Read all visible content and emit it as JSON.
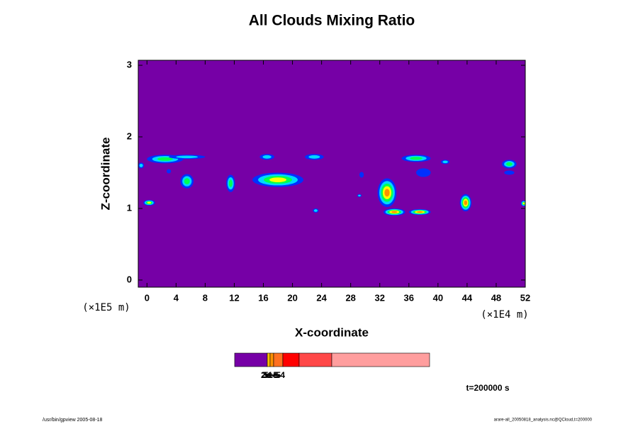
{
  "chart_data": {
    "type": "contour",
    "title": "All Clouds Mixing Ratio",
    "x_label": "X-coordinate",
    "y_label": "Z-coordinate",
    "x_unit": "(×1E4 m)",
    "y_unit": "(×1E5 m)",
    "xlim": [
      -1.2,
      52
    ],
    "xticks": [
      0,
      4,
      8,
      12,
      16,
      20,
      24,
      28,
      32,
      36,
      40,
      44,
      48,
      52
    ],
    "ylim": [
      -0.1,
      3.07
    ],
    "yticks": [
      0,
      1,
      2,
      3
    ],
    "background_color": "#7600a6",
    "level_colors": [
      "#7600a6",
      "#0030ff",
      "#00d8ff",
      "#00ff50",
      "#ffff00",
      "#ff9000",
      "#ff2a00"
    ],
    "patches": [
      {
        "x": 2.5,
        "y": 1.69,
        "rx": 2.5,
        "ry": 0.06,
        "level": 3
      },
      {
        "x": 5.5,
        "y": 1.72,
        "rx": 2.5,
        "ry": 0.03,
        "level": 2
      },
      {
        "x": 0.3,
        "y": 1.08,
        "rx": 0.8,
        "ry": 0.04,
        "level": 4
      },
      {
        "x": 5.5,
        "y": 1.38,
        "rx": 0.9,
        "ry": 0.1,
        "level": 3
      },
      {
        "x": 11.5,
        "y": 1.35,
        "rx": 0.6,
        "ry": 0.12,
        "level": 3
      },
      {
        "x": 18,
        "y": 1.4,
        "rx": 3.5,
        "ry": 0.1,
        "level": 4
      },
      {
        "x": 16.5,
        "y": 1.72,
        "rx": 1,
        "ry": 0.04,
        "level": 2
      },
      {
        "x": 23,
        "y": 1.72,
        "rx": 1.3,
        "ry": 0.04,
        "level": 2
      },
      {
        "x": 23.2,
        "y": 0.97,
        "rx": 0.4,
        "ry": 0.03,
        "level": 2
      },
      {
        "x": 33,
        "y": 1.22,
        "rx": 1.3,
        "ry": 0.2,
        "level": 5
      },
      {
        "x": 34,
        "y": 0.95,
        "rx": 1.5,
        "ry": 0.05,
        "level": 5
      },
      {
        "x": 37.5,
        "y": 0.95,
        "rx": 1.5,
        "ry": 0.04,
        "level": 5
      },
      {
        "x": 37,
        "y": 1.7,
        "rx": 2,
        "ry": 0.05,
        "level": 3
      },
      {
        "x": 38,
        "y": 1.5,
        "rx": 1,
        "ry": 0.06,
        "level": 1
      },
      {
        "x": 43.8,
        "y": 1.08,
        "rx": 0.8,
        "ry": 0.12,
        "level": 5
      },
      {
        "x": 49.8,
        "y": 1.62,
        "rx": 1,
        "ry": 0.06,
        "level": 3
      },
      {
        "x": 49.8,
        "y": 1.5,
        "rx": 0.7,
        "ry": 0.03,
        "level": 1
      },
      {
        "x": 51.8,
        "y": 1.07,
        "rx": 0.4,
        "ry": 0.04,
        "level": 4
      },
      {
        "x": 29.5,
        "y": 1.47,
        "rx": 0.3,
        "ry": 0.04,
        "level": 1
      },
      {
        "x": -0.8,
        "y": 1.6,
        "rx": 0.4,
        "ry": 0.04,
        "level": 2
      },
      {
        "x": 29.2,
        "y": 1.18,
        "rx": 0.3,
        "ry": 0.02,
        "level": 2
      },
      {
        "x": 3,
        "y": 1.52,
        "rx": 0.3,
        "ry": 0.03,
        "level": 1
      },
      {
        "x": 41,
        "y": 1.65,
        "rx": 0.6,
        "ry": 0.03,
        "level": 2
      }
    ],
    "colorbar": {
      "colors": [
        "#7600a6",
        "#ffc000",
        "#ff9000",
        "#ff7020",
        "#ff0000",
        "#ff4848",
        "#ff9e9e"
      ],
      "labels": [
        "2e-5",
        "3e-5",
        "5e-5",
        "1e-4"
      ]
    },
    "time_label": "t=200000 s",
    "footer_left": "/usr/bin/gpview 2005-08-18",
    "footer_right": "arare-all_20050818_analysis.nc@QCloud,t=200000"
  }
}
